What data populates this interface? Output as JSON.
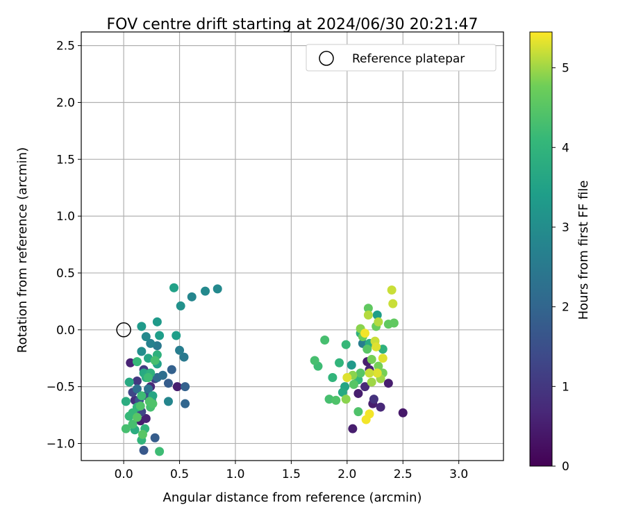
{
  "chart_data": {
    "type": "scatter",
    "title": "FOV centre drift starting at 2024/06/30 20:21:47",
    "xlabel": "Angular distance from reference (arcmin)",
    "ylabel": "Rotation from reference (arcmin)",
    "xlim": [
      -0.38,
      3.4
    ],
    "ylim": [
      -1.15,
      2.62
    ],
    "xticks": [
      "0.0",
      "0.5",
      "1.0",
      "1.5",
      "2.0",
      "2.5",
      "3.0"
    ],
    "xtick_values": [
      0,
      0.5,
      1.0,
      1.5,
      2.0,
      2.5,
      3.0
    ],
    "yticks": [
      "−1.0",
      "−0.5",
      "0.0",
      "0.5",
      "1.0",
      "1.5",
      "2.0",
      "2.5"
    ],
    "ytick_values": [
      -1.0,
      -0.5,
      0.0,
      0.5,
      1.0,
      1.5,
      2.0,
      2.5
    ],
    "grid": true,
    "legend": {
      "position": "top-right",
      "label": "Reference platepar"
    },
    "reference_point": {
      "x": 0.0,
      "y": 0.0
    },
    "colorbar": {
      "label": "Hours from first FF file",
      "range": [
        0,
        5.45
      ],
      "ticks": [
        "0",
        "1",
        "2",
        "3",
        "4",
        "5"
      ],
      "tick_values": [
        0,
        1,
        2,
        3,
        4,
        5
      ],
      "colormap": "viridis"
    },
    "points": [
      {
        "x": 0.06,
        "y": -0.29,
        "h": 0.6
      },
      {
        "x": 0.15,
        "y": -0.8,
        "h": 0.5
      },
      {
        "x": 0.2,
        "y": -0.78,
        "h": 0.6
      },
      {
        "x": 0.24,
        "y": -0.5,
        "h": 0.7
      },
      {
        "x": 0.48,
        "y": -0.5,
        "h": 0.5
      },
      {
        "x": 0.1,
        "y": -0.62,
        "h": 0.8
      },
      {
        "x": 0.12,
        "y": -0.45,
        "h": 1.0
      },
      {
        "x": 0.18,
        "y": -0.35,
        "h": 1.1
      },
      {
        "x": 0.28,
        "y": -0.43,
        "h": 1.2
      },
      {
        "x": 0.08,
        "y": -0.55,
        "h": 1.3
      },
      {
        "x": 0.16,
        "y": -0.72,
        "h": 1.3
      },
      {
        "x": 0.2,
        "y": -0.58,
        "h": 1.5
      },
      {
        "x": 0.14,
        "y": -0.62,
        "h": 1.6
      },
      {
        "x": 0.18,
        "y": -1.06,
        "h": 1.7
      },
      {
        "x": 0.28,
        "y": -0.95,
        "h": 1.8
      },
      {
        "x": 0.4,
        "y": -0.47,
        "h": 1.8
      },
      {
        "x": 0.43,
        "y": -0.35,
        "h": 1.9
      },
      {
        "x": 0.55,
        "y": -0.5,
        "h": 1.9
      },
      {
        "x": 0.55,
        "y": -0.65,
        "h": 2.0
      },
      {
        "x": 0.3,
        "y": -0.42,
        "h": 2.1
      },
      {
        "x": 0.35,
        "y": -0.4,
        "h": 2.2
      },
      {
        "x": 0.22,
        "y": -0.52,
        "h": 2.3
      },
      {
        "x": 0.25,
        "y": -0.62,
        "h": 2.4
      },
      {
        "x": 0.12,
        "y": -0.52,
        "h": 2.2
      },
      {
        "x": 0.54,
        "y": -0.24,
        "h": 2.5
      },
      {
        "x": 0.5,
        "y": -0.18,
        "h": 2.6
      },
      {
        "x": 0.3,
        "y": -0.14,
        "h": 2.5
      },
      {
        "x": 0.24,
        "y": -0.12,
        "h": 2.7
      },
      {
        "x": 0.4,
        "y": -0.63,
        "h": 2.8
      },
      {
        "x": 0.2,
        "y": -0.06,
        "h": 2.9
      },
      {
        "x": 0.16,
        "y": -0.19,
        "h": 3.0
      },
      {
        "x": 0.61,
        "y": 0.29,
        "h": 2.8
      },
      {
        "x": 0.73,
        "y": 0.34,
        "h": 2.9
      },
      {
        "x": 0.84,
        "y": 0.36,
        "h": 2.9
      },
      {
        "x": 0.51,
        "y": 0.21,
        "h": 3.1
      },
      {
        "x": 0.16,
        "y": 0.03,
        "h": 3.3
      },
      {
        "x": 0.3,
        "y": 0.07,
        "h": 3.3
      },
      {
        "x": 0.32,
        "y": -0.05,
        "h": 3.4
      },
      {
        "x": 0.47,
        "y": -0.05,
        "h": 3.4
      },
      {
        "x": 0.45,
        "y": 0.37,
        "h": 3.5
      },
      {
        "x": 0.3,
        "y": -0.3,
        "h": 3.5
      },
      {
        "x": 0.26,
        "y": -0.58,
        "h": 3.6
      },
      {
        "x": 0.22,
        "y": -0.25,
        "h": 3.6
      },
      {
        "x": 0.18,
        "y": -0.38,
        "h": 3.7
      },
      {
        "x": 0.05,
        "y": -0.46,
        "h": 3.7
      },
      {
        "x": 0.1,
        "y": -0.88,
        "h": 3.8
      },
      {
        "x": 0.02,
        "y": -0.63,
        "h": 3.8
      },
      {
        "x": 0.24,
        "y": -0.38,
        "h": 3.9
      },
      {
        "x": 0.3,
        "y": -0.22,
        "h": 3.9
      },
      {
        "x": 0.2,
        "y": -0.42,
        "h": 3.8
      },
      {
        "x": 0.16,
        "y": -0.97,
        "h": 4.0
      },
      {
        "x": 0.12,
        "y": -0.68,
        "h": 4.0
      },
      {
        "x": 0.19,
        "y": -0.87,
        "h": 4.0
      },
      {
        "x": 0.05,
        "y": -0.76,
        "h": 4.1
      },
      {
        "x": 0.12,
        "y": -0.28,
        "h": 4.1
      },
      {
        "x": 0.08,
        "y": -0.73,
        "h": 4.1
      },
      {
        "x": 0.16,
        "y": -0.58,
        "h": 4.2
      },
      {
        "x": 0.22,
        "y": -0.42,
        "h": 4.2
      },
      {
        "x": 0.32,
        "y": -1.07,
        "h": 4.2
      },
      {
        "x": 0.28,
        "y": -0.27,
        "h": 4.3
      },
      {
        "x": 0.24,
        "y": -0.68,
        "h": 4.3
      },
      {
        "x": 0.08,
        "y": -0.83,
        "h": 4.3
      },
      {
        "x": 0.02,
        "y": -0.87,
        "h": 4.3
      },
      {
        "x": 0.26,
        "y": -0.65,
        "h": 4.4
      },
      {
        "x": 0.15,
        "y": -0.67,
        "h": 4.4
      },
      {
        "x": 0.23,
        "y": -0.63,
        "h": 4.4
      },
      {
        "x": 0.12,
        "y": -0.77,
        "h": 4.5
      },
      {
        "x": 0.17,
        "y": -0.92,
        "h": 4.5
      },
      {
        "x": 2.05,
        "y": -0.87,
        "h": 0.5
      },
      {
        "x": 2.23,
        "y": -0.65,
        "h": 0.5
      },
      {
        "x": 2.1,
        "y": -0.56,
        "h": 0.5
      },
      {
        "x": 2.37,
        "y": -0.47,
        "h": 0.5
      },
      {
        "x": 2.5,
        "y": -0.73,
        "h": 0.4
      },
      {
        "x": 2.3,
        "y": -0.68,
        "h": 0.7
      },
      {
        "x": 2.16,
        "y": -0.5,
        "h": 0.7
      },
      {
        "x": 2.24,
        "y": -0.61,
        "h": 0.9
      },
      {
        "x": 2.18,
        "y": -0.28,
        "h": 0.5
      },
      {
        "x": 2.2,
        "y": -0.35,
        "h": 0.6
      },
      {
        "x": 2.14,
        "y": -0.12,
        "h": 2.6
      },
      {
        "x": 2.27,
        "y": 0.13,
        "h": 3.4
      },
      {
        "x": 2.04,
        "y": -0.31,
        "h": 3.3
      },
      {
        "x": 1.98,
        "y": -0.5,
        "h": 3.6
      },
      {
        "x": 1.96,
        "y": -0.55,
        "h": 3.7
      },
      {
        "x": 2.2,
        "y": -0.12,
        "h": 3.8
      },
      {
        "x": 2.12,
        "y": -0.03,
        "h": 3.9
      },
      {
        "x": 2.32,
        "y": -0.17,
        "h": 3.9
      },
      {
        "x": 1.87,
        "y": -0.42,
        "h": 4.0
      },
      {
        "x": 1.93,
        "y": -0.29,
        "h": 4.0
      },
      {
        "x": 1.99,
        "y": -0.13,
        "h": 4.1
      },
      {
        "x": 2.1,
        "y": -0.44,
        "h": 4.1
      },
      {
        "x": 1.74,
        "y": -0.32,
        "h": 4.2
      },
      {
        "x": 1.71,
        "y": -0.27,
        "h": 4.3
      },
      {
        "x": 1.8,
        "y": -0.09,
        "h": 4.3
      },
      {
        "x": 1.84,
        "y": -0.61,
        "h": 4.3
      },
      {
        "x": 1.9,
        "y": -0.62,
        "h": 4.4
      },
      {
        "x": 2.1,
        "y": -0.72,
        "h": 4.4
      },
      {
        "x": 2.06,
        "y": -0.48,
        "h": 4.5
      },
      {
        "x": 2.12,
        "y": -0.38,
        "h": 4.5
      },
      {
        "x": 2.18,
        "y": -0.17,
        "h": 4.5
      },
      {
        "x": 2.19,
        "y": 0.19,
        "h": 4.6
      },
      {
        "x": 2.37,
        "y": 0.05,
        "h": 4.6
      },
      {
        "x": 2.42,
        "y": 0.06,
        "h": 4.6
      },
      {
        "x": 2.26,
        "y": 0.03,
        "h": 4.7
      },
      {
        "x": 2.14,
        "y": -0.06,
        "h": 4.7
      },
      {
        "x": 2.22,
        "y": -0.26,
        "h": 4.8
      },
      {
        "x": 2.28,
        "y": -0.32,
        "h": 4.8
      },
      {
        "x": 2.32,
        "y": -0.38,
        "h": 4.8
      },
      {
        "x": 2.05,
        "y": -0.4,
        "h": 4.9
      },
      {
        "x": 2.12,
        "y": 0.01,
        "h": 4.9
      },
      {
        "x": 1.99,
        "y": -0.61,
        "h": 4.9
      },
      {
        "x": 2.22,
        "y": -0.46,
        "h": 5.0
      },
      {
        "x": 2.3,
        "y": -0.43,
        "h": 5.0
      },
      {
        "x": 2.19,
        "y": 0.13,
        "h": 5.1
      },
      {
        "x": 2.28,
        "y": 0.07,
        "h": 5.1
      },
      {
        "x": 2.41,
        "y": 0.23,
        "h": 5.2
      },
      {
        "x": 2.4,
        "y": 0.35,
        "h": 5.2
      },
      {
        "x": 2.25,
        "y": -0.1,
        "h": 5.2
      },
      {
        "x": 2.26,
        "y": -0.15,
        "h": 5.3
      },
      {
        "x": 2.32,
        "y": -0.25,
        "h": 5.3
      },
      {
        "x": 2.27,
        "y": -0.38,
        "h": 5.3
      },
      {
        "x": 2.2,
        "y": -0.74,
        "h": 5.4
      },
      {
        "x": 2.17,
        "y": -0.79,
        "h": 5.4
      },
      {
        "x": 2.0,
        "y": -0.42,
        "h": 5.3
      },
      {
        "x": 2.2,
        "y": -0.38,
        "h": 5.2
      },
      {
        "x": 2.16,
        "y": -0.03,
        "h": 5.4
      }
    ]
  }
}
